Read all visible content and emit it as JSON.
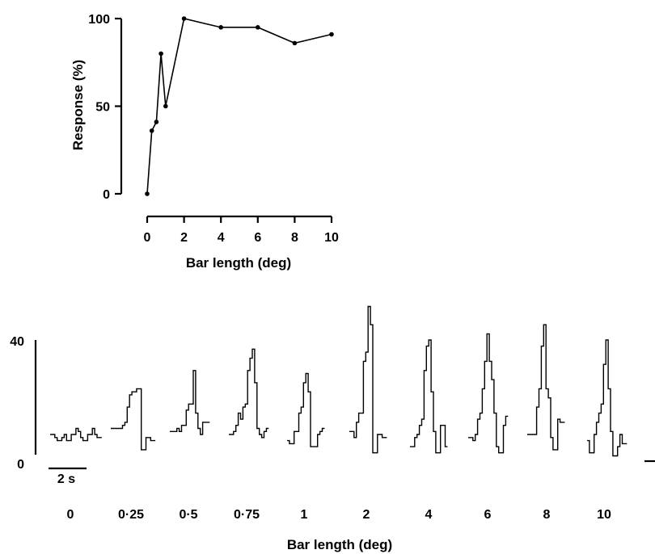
{
  "chart_data": [
    {
      "type": "line",
      "xlabel": "Bar length (deg)",
      "ylabel": "Response (%)",
      "xlim": [
        0,
        10
      ],
      "ylim": [
        0,
        100
      ],
      "xticks": [
        "0",
        "2",
        "4",
        "6",
        "8",
        "10"
      ],
      "yticks": [
        "0",
        "50",
        "100"
      ],
      "grid": false,
      "series": [
        {
          "x": [
            0,
            0.25,
            0.5,
            0.75,
            1,
            2,
            4,
            6,
            8,
            10
          ],
          "y": [
            0,
            36,
            41,
            80,
            50,
            100,
            95,
            95,
            86,
            91
          ]
        }
      ]
    },
    {
      "type": "bar",
      "xlabel": "Bar length (deg)",
      "categories": [
        "0",
        "0·25",
        "0·5",
        "0·75",
        "1",
        "2",
        "4",
        "6",
        "8",
        "10"
      ],
      "ylim": [
        0,
        40
      ],
      "yticks": [
        "0",
        "40"
      ],
      "scale_bar_label": "2 s",
      "histograms": [
        [
          9,
          9,
          8,
          7,
          7,
          8,
          9,
          7,
          7,
          9,
          9,
          11,
          10,
          8,
          7,
          7,
          9,
          9,
          11,
          9,
          8,
          8
        ],
        [
          11,
          11,
          11,
          11,
          11,
          12,
          13,
          18,
          22,
          23,
          23,
          24,
          24,
          4,
          4,
          8,
          8,
          7,
          7
        ],
        [
          10,
          10,
          10,
          11,
          10,
          12,
          12,
          17,
          19,
          19,
          30,
          16,
          11,
          9,
          13,
          13,
          13
        ],
        [
          9,
          9,
          10,
          12,
          16,
          14,
          18,
          19,
          30,
          34,
          37,
          26,
          11,
          9,
          8,
          10,
          11
        ],
        [
          7,
          6,
          6,
          10,
          10,
          16,
          18,
          26,
          29,
          23,
          5,
          5,
          5,
          9,
          10,
          11
        ],
        [
          10,
          10,
          8,
          13,
          16,
          16,
          33,
          36,
          51,
          45,
          3,
          3,
          9,
          9,
          8,
          8
        ],
        [
          5,
          5,
          8,
          9,
          12,
          14,
          30,
          38,
          40,
          23,
          10,
          3,
          3,
          12,
          12,
          5
        ],
        [
          8,
          8,
          7,
          9,
          14,
          16,
          24,
          33,
          42,
          33,
          27,
          16,
          5,
          3,
          3,
          12,
          15
        ],
        [
          9,
          9,
          9,
          9,
          18,
          24,
          38,
          45,
          24,
          21,
          8,
          4,
          4,
          14,
          13,
          13
        ],
        [
          7,
          3,
          3,
          9,
          13,
          16,
          19,
          32,
          40,
          24,
          10,
          2,
          2,
          5,
          9,
          6,
          6
        ]
      ]
    }
  ]
}
